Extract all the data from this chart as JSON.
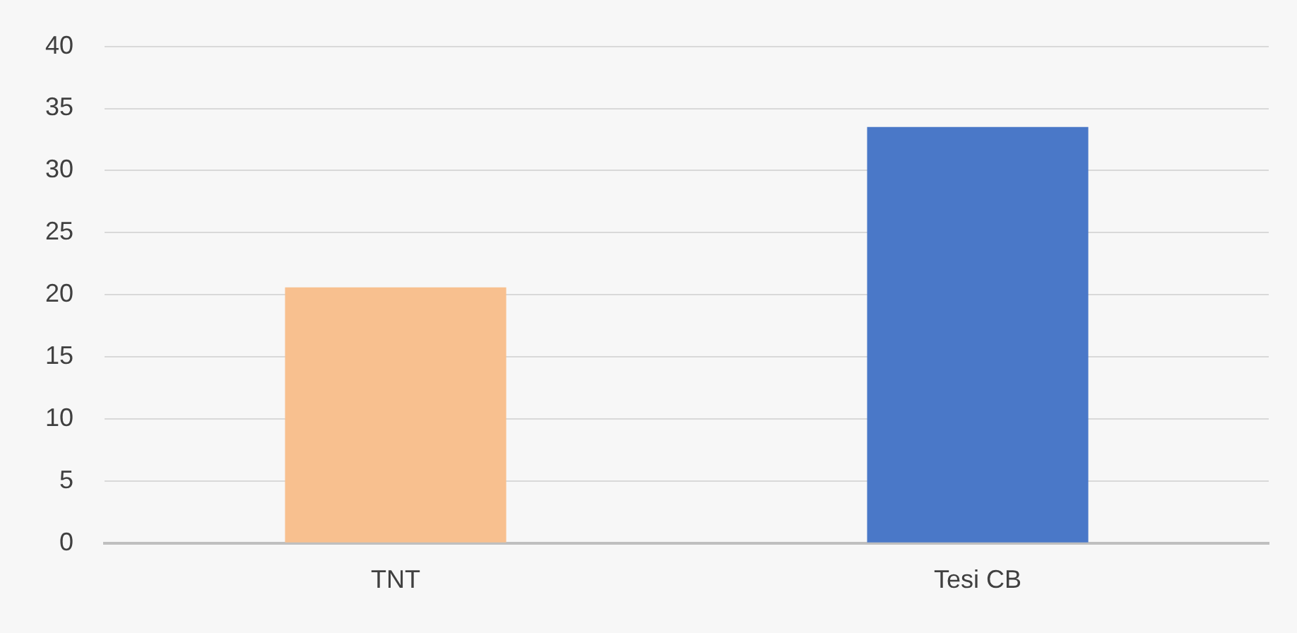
{
  "chart_data": {
    "type": "bar",
    "categories": [
      "TNT",
      "Tesi CB"
    ],
    "values": [
      20.6,
      33.5
    ],
    "colors": [
      "#f8c08f",
      "#4a78c8"
    ],
    "ylim": [
      0,
      40
    ],
    "yticks": [
      0,
      5,
      10,
      15,
      20,
      25,
      30,
      35,
      40
    ],
    "grid": "y",
    "legend": false
  }
}
